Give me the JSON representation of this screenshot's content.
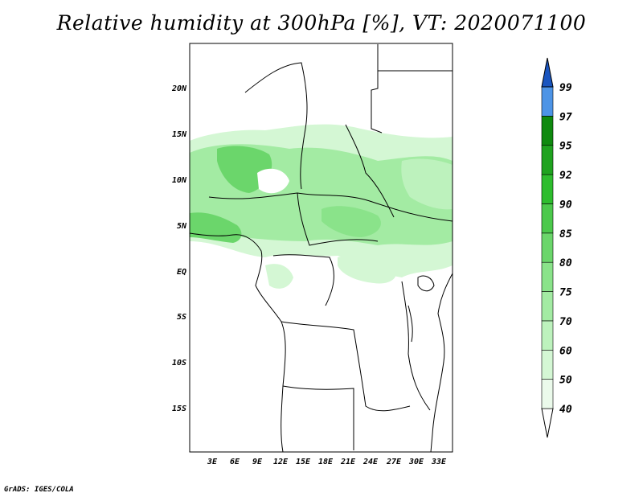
{
  "title": "Relative humidity at 300hPa [%], VT: 2020071100",
  "credit": "GrADS: IGES/COLA",
  "map": {
    "lat_ticks": [
      "20N",
      "15N",
      "10N",
      "5N",
      "EQ",
      "5S",
      "10S",
      "15S"
    ],
    "lon_ticks": [
      "3E",
      "6E",
      "9E",
      "12E",
      "15E",
      "18E",
      "21E",
      "24E",
      "27E",
      "30E",
      "33E"
    ]
  },
  "colorbar": {
    "levels": [
      "40",
      "50",
      "60",
      "70",
      "75",
      "80",
      "85",
      "90",
      "92",
      "95",
      "97",
      "99"
    ],
    "colors": [
      "#ebfaeb",
      "#d4f7d4",
      "#bdf2bd",
      "#a3eba3",
      "#8ae38a",
      "#6bd66b",
      "#4cc94c",
      "#2ebd2e",
      "#1fa31f",
      "#0f8a0f",
      "#4d94e6",
      "#2a70d9",
      "#1a55bf"
    ]
  }
}
